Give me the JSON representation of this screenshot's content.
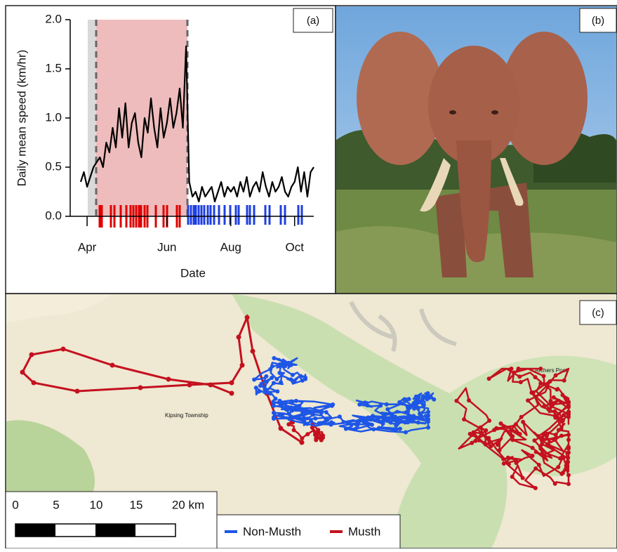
{
  "chart_data": {
    "type": "line",
    "y_label": "Daily mean speed (km/hr)",
    "x_label": "Date",
    "color": "#000000",
    "categories": [
      null,
      null,
      "Apr",
      null,
      null,
      null,
      null,
      null,
      null,
      null,
      null,
      null,
      null,
      null,
      null,
      null,
      null,
      null,
      null,
      null,
      null,
      null,
      null,
      null,
      null,
      null,
      null,
      "Jun",
      null,
      null,
      null,
      null,
      null,
      null,
      null,
      null,
      null,
      null,
      null,
      null,
      null,
      null,
      null,
      null,
      null,
      null,
      null,
      "Aug",
      null,
      null,
      null,
      null,
      null,
      null,
      null,
      null,
      null,
      null,
      null,
      null,
      null,
      null,
      null,
      null,
      null,
      null,
      null,
      "Oct",
      null,
      null,
      null,
      null,
      null,
      null
    ],
    "values": [
      0.35,
      0.45,
      0.3,
      0.4,
      0.5,
      0.55,
      0.6,
      0.5,
      0.75,
      0.65,
      0.9,
      0.7,
      1.1,
      0.8,
      1.15,
      0.7,
      0.95,
      1.05,
      0.75,
      0.6,
      1.0,
      0.85,
      1.2,
      0.9,
      0.7,
      1.1,
      0.8,
      0.95,
      1.2,
      0.9,
      1.05,
      1.3,
      0.9,
      1.73,
      0.35,
      0.2,
      0.25,
      0.15,
      0.3,
      0.2,
      0.25,
      0.3,
      0.15,
      0.25,
      0.35,
      0.2,
      0.3,
      0.25,
      0.3,
      0.2,
      0.35,
      0.25,
      0.4,
      0.2,
      0.3,
      0.35,
      0.25,
      0.45,
      0.3,
      0.2,
      0.35,
      0.25,
      0.3,
      0.4,
      0.25,
      0.2,
      0.3,
      0.35,
      0.5,
      0.25,
      0.45,
      0.2,
      0.45,
      0.5
    ],
    "ylim": [
      0,
      2
    ],
    "yticks": [
      {
        "value": 0,
        "label": "0.0"
      },
      {
        "value": 0.5,
        "label": "0.5"
      },
      {
        "value": 1,
        "label": "1.0"
      },
      {
        "value": 1.5,
        "label": "1.5"
      },
      {
        "value": 2,
        "label": "2.0"
      }
    ]
  },
  "panels": {
    "a": "(a)",
    "b": "(b)",
    "c": "(c)"
  },
  "map": {
    "places": [
      "Kipsing Township",
      "Archers Post"
    ],
    "scale_labels": [
      "0",
      "5",
      "10",
      "15",
      "20 km"
    ],
    "legend": [
      "Non-Musth",
      "Musth"
    ]
  }
}
